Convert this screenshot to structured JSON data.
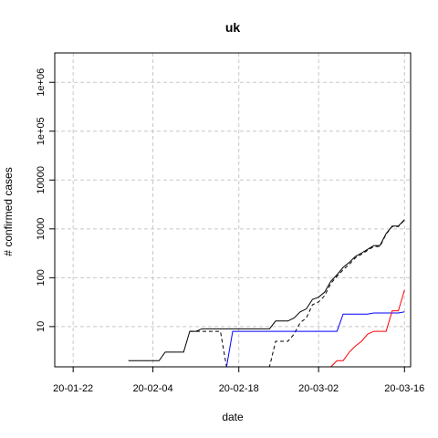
{
  "chart_data": {
    "type": "line",
    "title": "uk",
    "xlabel": "date",
    "ylabel": "# confirmed cases",
    "y_scale": "log",
    "grid": true,
    "x_range": [
      "2020-01-19",
      "2020-03-17"
    ],
    "y_range": [
      1.5,
      4000000
    ],
    "x_ticks": [
      {
        "date": "2020-01-22",
        "label": "20-01-22"
      },
      {
        "date": "2020-02-04",
        "label": "20-02-04"
      },
      {
        "date": "2020-02-18",
        "label": "20-02-18"
      },
      {
        "date": "2020-03-02",
        "label": "20-03-02"
      },
      {
        "date": "2020-03-16",
        "label": "20-03-16"
      }
    ],
    "y_ticks": [
      {
        "value": 10,
        "label": "10"
      },
      {
        "value": 100,
        "label": "100"
      },
      {
        "value": 1000,
        "label": "1000"
      },
      {
        "value": 10000,
        "label": "10000"
      },
      {
        "value": 100000,
        "label": "1e+05"
      },
      {
        "value": 1000000,
        "label": "1e+06"
      }
    ],
    "series": [
      {
        "color": "#000000",
        "dash": "solid",
        "points": [
          [
            "2020-01-31",
            2
          ],
          [
            "2020-02-01",
            2
          ],
          [
            "2020-02-02",
            2
          ],
          [
            "2020-02-03",
            2
          ],
          [
            "2020-02-04",
            2
          ],
          [
            "2020-02-05",
            2
          ],
          [
            "2020-02-06",
            3
          ],
          [
            "2020-02-07",
            3
          ],
          [
            "2020-02-08",
            3
          ],
          [
            "2020-02-09",
            3
          ],
          [
            "2020-02-10",
            8
          ],
          [
            "2020-02-11",
            8
          ],
          [
            "2020-02-12",
            9
          ],
          [
            "2020-02-13",
            9
          ],
          [
            "2020-02-14",
            9
          ],
          [
            "2020-02-15",
            9
          ],
          [
            "2020-02-16",
            9
          ],
          [
            "2020-02-17",
            9
          ],
          [
            "2020-02-18",
            9
          ],
          [
            "2020-02-19",
            9
          ],
          [
            "2020-02-20",
            9
          ],
          [
            "2020-02-21",
            9
          ],
          [
            "2020-02-22",
            9
          ],
          [
            "2020-02-23",
            9
          ],
          [
            "2020-02-24",
            13
          ],
          [
            "2020-02-25",
            13
          ],
          [
            "2020-02-26",
            13
          ],
          [
            "2020-02-27",
            15
          ],
          [
            "2020-02-28",
            20
          ],
          [
            "2020-02-29",
            23
          ],
          [
            "2020-03-01",
            36
          ],
          [
            "2020-03-02",
            40
          ],
          [
            "2020-03-03",
            51
          ],
          [
            "2020-03-04",
            85
          ],
          [
            "2020-03-05",
            115
          ],
          [
            "2020-03-06",
            163
          ],
          [
            "2020-03-07",
            206
          ],
          [
            "2020-03-08",
            273
          ],
          [
            "2020-03-09",
            321
          ],
          [
            "2020-03-10",
            382
          ],
          [
            "2020-03-11",
            456
          ],
          [
            "2020-03-12",
            456
          ],
          [
            "2020-03-13",
            798
          ],
          [
            "2020-03-14",
            1140
          ],
          [
            "2020-03-15",
            1140
          ],
          [
            "2020-03-16",
            1543
          ]
        ]
      },
      {
        "color": "#000000",
        "dash": "dashed",
        "points": [
          [
            "2020-02-10",
            8
          ],
          [
            "2020-02-11",
            8
          ],
          [
            "2020-02-12",
            8
          ],
          [
            "2020-02-13",
            8
          ],
          [
            "2020-02-14",
            8
          ],
          [
            "2020-02-15",
            8
          ],
          [
            "2020-02-16",
            1.5
          ],
          [
            "2020-02-17",
            1.5
          ],
          [
            "2020-02-18",
            1.5
          ],
          [
            "2020-02-19",
            1.5
          ],
          [
            "2020-02-20",
            1.5
          ],
          [
            "2020-02-21",
            1.5
          ],
          [
            "2020-02-22",
            1.5
          ],
          [
            "2020-02-23",
            1.5
          ],
          [
            "2020-02-24",
            5
          ],
          [
            "2020-02-25",
            5
          ],
          [
            "2020-02-26",
            5
          ],
          [
            "2020-02-27",
            7
          ],
          [
            "2020-02-28",
            12
          ],
          [
            "2020-02-29",
            15
          ],
          [
            "2020-03-01",
            28
          ],
          [
            "2020-03-02",
            32
          ],
          [
            "2020-03-03",
            43
          ],
          [
            "2020-03-04",
            77
          ],
          [
            "2020-03-05",
            107
          ],
          [
            "2020-03-06",
            145
          ],
          [
            "2020-03-07",
            188
          ],
          [
            "2020-03-08",
            255
          ],
          [
            "2020-03-09",
            303
          ],
          [
            "2020-03-10",
            364
          ],
          [
            "2020-03-11",
            437
          ],
          [
            "2020-03-12",
            437
          ],
          [
            "2020-03-13",
            779
          ],
          [
            "2020-03-14",
            1119
          ],
          [
            "2020-03-15",
            1119
          ],
          [
            "2020-03-16",
            1518
          ]
        ]
      },
      {
        "color": "#0000ff",
        "dash": "solid",
        "points": [
          [
            "2020-02-13",
            1.5
          ],
          [
            "2020-02-14",
            1.5
          ],
          [
            "2020-02-15",
            1.5
          ],
          [
            "2020-02-16",
            1.5
          ],
          [
            "2020-02-17",
            8
          ],
          [
            "2020-02-18",
            8
          ],
          [
            "2020-02-19",
            8
          ],
          [
            "2020-02-20",
            8
          ],
          [
            "2020-02-21",
            8
          ],
          [
            "2020-02-22",
            8
          ],
          [
            "2020-02-23",
            8
          ],
          [
            "2020-02-24",
            8
          ],
          [
            "2020-02-25",
            8
          ],
          [
            "2020-02-26",
            8
          ],
          [
            "2020-02-27",
            8
          ],
          [
            "2020-02-28",
            8
          ],
          [
            "2020-02-29",
            8
          ],
          [
            "2020-03-01",
            8
          ],
          [
            "2020-03-02",
            8
          ],
          [
            "2020-03-03",
            8
          ],
          [
            "2020-03-04",
            8
          ],
          [
            "2020-03-05",
            8
          ],
          [
            "2020-03-06",
            18
          ],
          [
            "2020-03-07",
            18
          ],
          [
            "2020-03-08",
            18
          ],
          [
            "2020-03-09",
            18
          ],
          [
            "2020-03-10",
            18
          ],
          [
            "2020-03-11",
            19
          ],
          [
            "2020-03-12",
            19
          ],
          [
            "2020-03-13",
            19
          ],
          [
            "2020-03-14",
            19
          ],
          [
            "2020-03-15",
            19
          ],
          [
            "2020-03-16",
            20
          ]
        ]
      },
      {
        "color": "#ff0000",
        "dash": "solid",
        "points": [
          [
            "2020-03-04",
            1.5
          ],
          [
            "2020-03-05",
            2
          ],
          [
            "2020-03-06",
            2
          ],
          [
            "2020-03-07",
            3
          ],
          [
            "2020-03-08",
            4
          ],
          [
            "2020-03-09",
            5
          ],
          [
            "2020-03-10",
            7
          ],
          [
            "2020-03-11",
            8
          ],
          [
            "2020-03-12",
            8
          ],
          [
            "2020-03-13",
            8
          ],
          [
            "2020-03-14",
            21
          ],
          [
            "2020-03-15",
            21
          ],
          [
            "2020-03-16",
            56
          ]
        ]
      }
    ]
  }
}
